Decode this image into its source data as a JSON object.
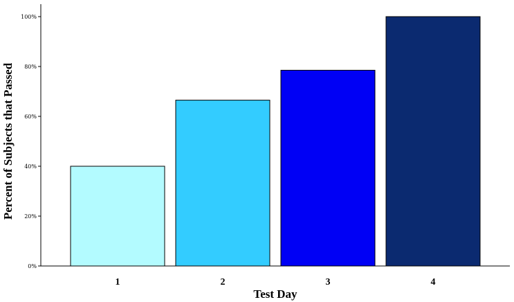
{
  "chart_data": {
    "type": "bar",
    "xlabel": "Test Day",
    "ylabel": "Percent of Subjects that Passed",
    "categories": [
      "1",
      "2",
      "3",
      "4"
    ],
    "values": [
      40,
      66.5,
      78.5,
      100
    ],
    "colors": [
      "#b3fbff",
      "#33ccff",
      "#0000f5",
      "#0b2a70"
    ],
    "ylim": [
      0,
      100
    ],
    "yticks": [
      0,
      20,
      40,
      60,
      80,
      100
    ],
    "ytick_labels": [
      "0%",
      "20%",
      "40%",
      "60%",
      "80%",
      "100%"
    ],
    "grid": false
  }
}
